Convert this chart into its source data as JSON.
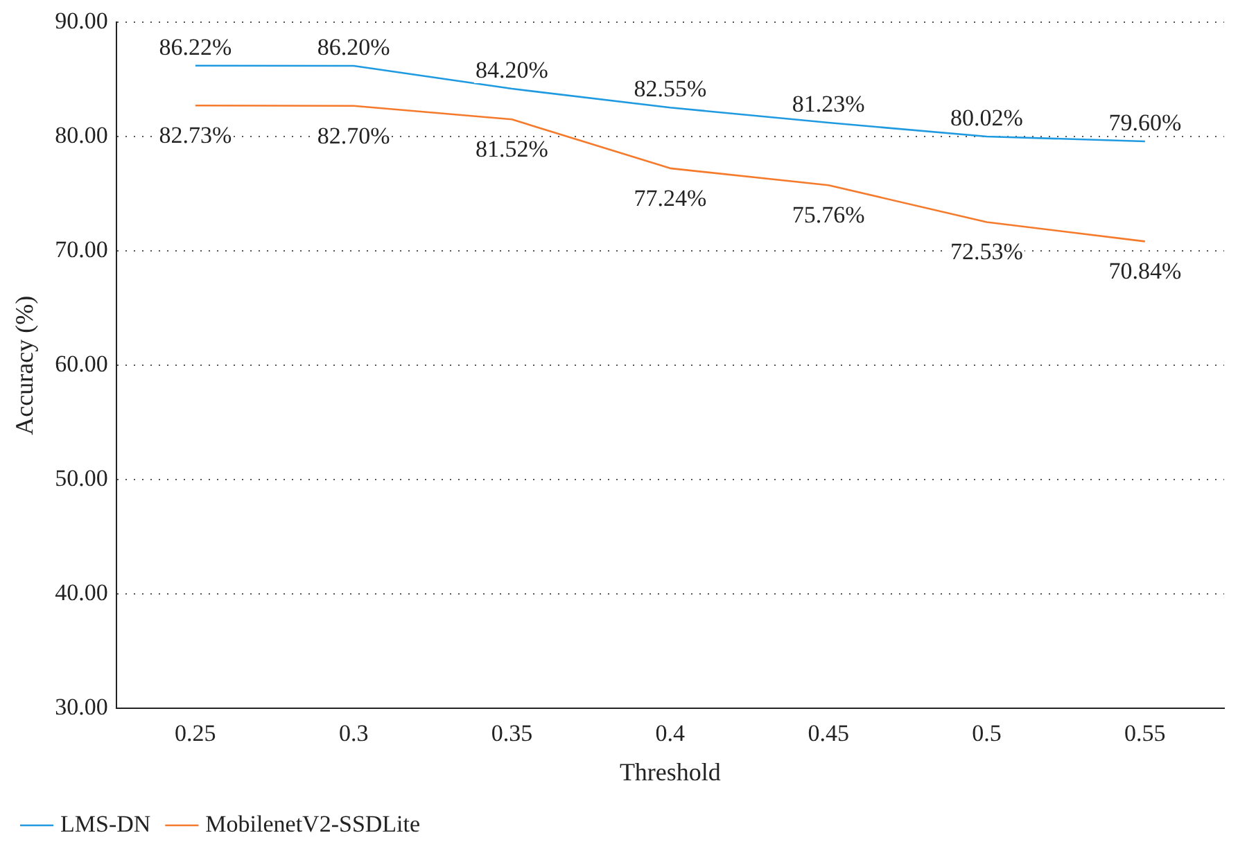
{
  "chart_data": {
    "type": "line",
    "xlabel": "Threshold",
    "ylabel": "Accuracy (%)",
    "categories": [
      "0.25",
      "0.3",
      "0.35",
      "0.4",
      "0.45",
      "0.5",
      "0.55"
    ],
    "series": [
      {
        "name": "LMS-DN",
        "color": "#1f9ae0",
        "values": [
          86.22,
          86.2,
          84.2,
          82.55,
          81.23,
          80.02,
          79.6
        ],
        "value_labels": [
          "86.22%",
          "86.20%",
          "84.20%",
          "82.55%",
          "81.23%",
          "80.02%",
          "79.60%"
        ]
      },
      {
        "name": "MobilenetV2-SSDLite",
        "color": "#f57a2c",
        "values": [
          82.73,
          82.7,
          81.52,
          77.24,
          75.76,
          72.53,
          70.84
        ],
        "value_labels": [
          "82.73%",
          "82.70%",
          "81.52%",
          "77.24%",
          "75.76%",
          "72.53%",
          "70.84%"
        ]
      }
    ],
    "ylim": [
      30,
      90
    ],
    "yticks": [
      {
        "value": 30,
        "label": "30.00"
      },
      {
        "value": 40,
        "label": "40.00"
      },
      {
        "value": 50,
        "label": "50.00"
      },
      {
        "value": 60,
        "label": "60.00"
      },
      {
        "value": 70,
        "label": "70.00"
      },
      {
        "value": 80,
        "label": "80.00"
      },
      {
        "value": 90,
        "label": "90.00"
      }
    ],
    "grid": "y",
    "legend": "bottom left",
    "marker": "none",
    "line_style": "solid"
  }
}
